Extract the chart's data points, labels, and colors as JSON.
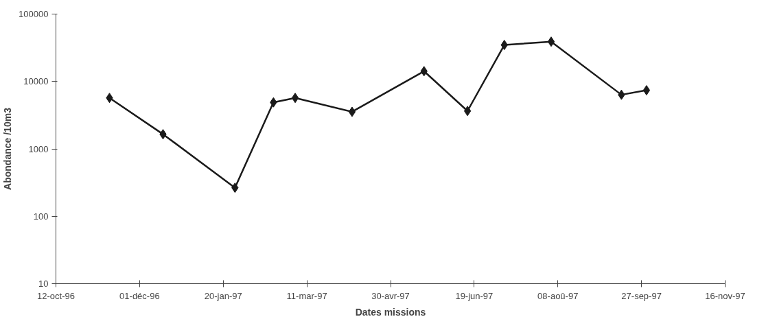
{
  "chart_data": {
    "type": "line",
    "xlabel": "Dates missions",
    "ylabel": "Abondance /10m3",
    "x": [
      "1996-11-13",
      "1996-12-15",
      "1997-01-27",
      "1997-02-19",
      "1997-03-04",
      "1997-04-07",
      "1997-05-20",
      "1997-06-15",
      "1997-07-07",
      "1997-08-04",
      "1997-09-15",
      "1997-09-30"
    ],
    "series": [
      {
        "color": "#1a1a1a",
        "values": [
          5700,
          1650,
          265,
          4900,
          5700,
          3550,
          14200,
          3650,
          34800,
          39000,
          6350,
          7400
        ]
      }
    ],
    "xlim": [
      "1996-10-12",
      "1997-11-16"
    ],
    "xticks": [
      {
        "value": "1996-10-12",
        "label": "12-oct-96"
      },
      {
        "value": "1996-12-01",
        "label": "01-déc-96"
      },
      {
        "value": "1997-01-20",
        "label": "20-jan-97"
      },
      {
        "value": "1997-03-11",
        "label": "11-mar-97"
      },
      {
        "value": "1997-04-30",
        "label": "30-avr-97"
      },
      {
        "value": "1997-06-19",
        "label": "19-jun-97"
      },
      {
        "value": "1997-08-08",
        "label": "08-aoû-97"
      },
      {
        "value": "1997-09-27",
        "label": "27-sep-97"
      },
      {
        "value": "1997-11-16",
        "label": "16-nov-97"
      }
    ],
    "ylim": [
      10,
      100000
    ],
    "yticks": [
      10,
      100,
      1000,
      10000,
      100000
    ],
    "log": true,
    "grid": false,
    "marker": "diamond",
    "line_style": "solid"
  }
}
